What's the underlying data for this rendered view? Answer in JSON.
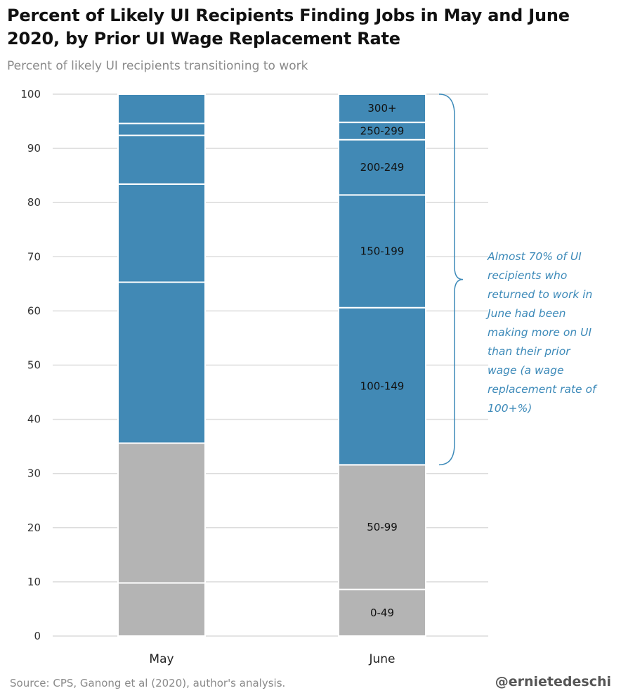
{
  "title": "Percent of Likely UI Recipients Finding Jobs in May and June 2020, by Prior UI Wage Replacement Rate",
  "subtitle": "Percent of likely UI recipients transitioning to work",
  "source": "Source: CPS, Ganong et al (2020), author's analysis.",
  "handle": "@ernietedeschi",
  "colors": {
    "blue": "#4189b5",
    "gray": "#b4b4b4",
    "grid": "#dcdcdc",
    "annotation": "#3d8ab9"
  },
  "annotation_lines": [
    "Almost 70% of UI",
    "recipients who",
    "returned to work in",
    "June had been",
    "making more on UI",
    "than their prior",
    "wage (a wage",
    "replacement rate of",
    "100+%)"
  ],
  "chart_data": {
    "type": "bar",
    "stacked": true,
    "categories": [
      "May",
      "June"
    ],
    "ylim": [
      0,
      100
    ],
    "yticks": [
      0,
      10,
      20,
      30,
      40,
      50,
      60,
      70,
      80,
      90,
      100
    ],
    "grid": true,
    "series": [
      {
        "name": "0-49",
        "values": [
          9.8,
          8.6
        ],
        "color": "gray"
      },
      {
        "name": "50-99",
        "values": [
          25.8,
          23.0
        ],
        "color": "gray"
      },
      {
        "name": "100-149",
        "values": [
          29.7,
          29.0
        ],
        "color": "blue"
      },
      {
        "name": "150-199",
        "values": [
          18.1,
          20.8
        ],
        "color": "blue"
      },
      {
        "name": "200-249",
        "values": [
          9.0,
          10.2
        ],
        "color": "blue"
      },
      {
        "name": "250-299",
        "values": [
          2.2,
          3.2
        ],
        "color": "blue"
      },
      {
        "name": "300+",
        "values": [
          5.4,
          5.2
        ],
        "color": "blue"
      }
    ],
    "labeled_category": "June"
  }
}
